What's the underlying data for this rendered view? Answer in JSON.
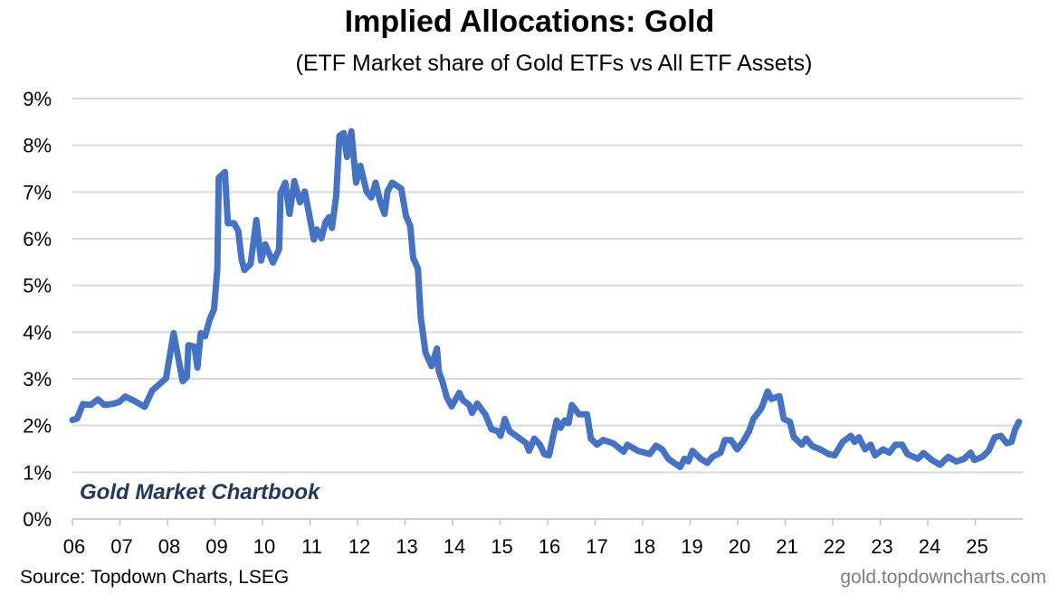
{
  "chart_data": {
    "type": "line",
    "title": "Implied Allocations: Gold",
    "subtitle": "(ETF Market share of Gold ETFs vs All ETF Assets)",
    "xlabel": "",
    "ylabel": "",
    "xlim": [
      2006,
      2026
    ],
    "ylim": [
      0,
      9
    ],
    "grid": true,
    "y_tick_labels": [
      "0%",
      "1%",
      "2%",
      "3%",
      "4%",
      "5%",
      "6%",
      "7%",
      "8%",
      "9%"
    ],
    "x_tick_labels": [
      "06",
      "07",
      "08",
      "09",
      "10",
      "11",
      "12",
      "13",
      "14",
      "15",
      "16",
      "17",
      "18",
      "19",
      "20",
      "21",
      "22",
      "23",
      "24",
      "25"
    ],
    "line_color": "#4472C4",
    "series": [
      {
        "x": [
          2006.0,
          2006.1,
          2006.22,
          2006.38,
          2006.54,
          2006.67,
          2006.83,
          2006.98,
          2007.11,
          2007.3,
          2007.52,
          2007.68,
          2007.97,
          2008.13,
          2008.32,
          2008.41,
          2008.44,
          2008.57,
          2008.63,
          2008.7,
          2008.79,
          2008.89,
          2008.98,
          2009.05,
          2009.08,
          2009.21,
          2009.27,
          2009.4,
          2009.49,
          2009.56,
          2009.62,
          2009.75,
          2009.87,
          2009.97,
          2010.06,
          2010.22,
          2010.35,
          2010.38,
          2010.48,
          2010.57,
          2010.67,
          2010.79,
          2010.89,
          2010.98,
          2011.08,
          2011.14,
          2011.24,
          2011.33,
          2011.4,
          2011.46,
          2011.55,
          2011.62,
          2011.71,
          2011.78,
          2011.87,
          2011.97,
          2012.06,
          2012.19,
          2012.29,
          2012.38,
          2012.48,
          2012.57,
          2012.63,
          2012.73,
          2012.92,
          2013.02,
          2013.11,
          2013.17,
          2013.27,
          2013.33,
          2013.43,
          2013.56,
          2013.67,
          2013.71,
          2013.79,
          2013.88,
          2013.98,
          2014.14,
          2014.22,
          2014.35,
          2014.41,
          2014.52,
          2014.69,
          2014.82,
          2014.95,
          2015.01,
          2015.1,
          2015.2,
          2015.42,
          2015.55,
          2015.61,
          2015.72,
          2015.84,
          2015.93,
          2016.03,
          2016.1,
          2016.19,
          2016.27,
          2016.36,
          2016.44,
          2016.51,
          2016.66,
          2016.83,
          2016.91,
          2017.04,
          2017.17,
          2017.38,
          2017.6,
          2017.68,
          2017.9,
          2018.15,
          2018.28,
          2018.41,
          2018.54,
          2018.66,
          2018.79,
          2018.88,
          2018.96,
          2019.05,
          2019.22,
          2019.36,
          2019.47,
          2019.64,
          2019.73,
          2019.86,
          2019.99,
          2020.11,
          2020.24,
          2020.33,
          2020.5,
          2020.63,
          2020.71,
          2020.88,
          2020.97,
          2021.1,
          2021.18,
          2021.35,
          2021.44,
          2021.57,
          2021.74,
          2021.91,
          2022.04,
          2022.21,
          2022.38,
          2022.46,
          2022.55,
          2022.68,
          2022.8,
          2022.89,
          2023.06,
          2023.19,
          2023.32,
          2023.46,
          2023.57,
          2023.79,
          2023.91,
          2024.09,
          2024.26,
          2024.43,
          2024.6,
          2024.77,
          2024.9,
          2024.98,
          2025.15,
          2025.28,
          2025.41,
          2025.54,
          2025.66,
          2025.76,
          2025.84,
          2025.92
        ],
        "y": [
          2.12,
          2.15,
          2.46,
          2.44,
          2.56,
          2.44,
          2.46,
          2.5,
          2.62,
          2.53,
          2.4,
          2.75,
          3.01,
          3.98,
          2.95,
          3.04,
          3.72,
          3.69,
          3.24,
          3.98,
          3.91,
          4.27,
          4.49,
          5.36,
          7.3,
          7.43,
          6.33,
          6.33,
          6.17,
          5.56,
          5.33,
          5.46,
          6.4,
          5.53,
          5.88,
          5.49,
          5.78,
          6.98,
          7.2,
          6.53,
          7.23,
          6.78,
          7.01,
          6.53,
          5.98,
          6.2,
          6.01,
          6.36,
          6.46,
          6.23,
          6.91,
          8.2,
          8.26,
          7.75,
          8.3,
          7.2,
          7.56,
          7.01,
          6.88,
          7.2,
          6.78,
          6.53,
          7.01,
          7.2,
          7.07,
          6.49,
          6.27,
          5.59,
          5.36,
          4.33,
          3.56,
          3.27,
          3.65,
          3.16,
          2.93,
          2.6,
          2.41,
          2.7,
          2.54,
          2.44,
          2.27,
          2.47,
          2.24,
          1.92,
          1.88,
          1.78,
          2.14,
          1.88,
          1.72,
          1.62,
          1.46,
          1.72,
          1.59,
          1.39,
          1.36,
          1.69,
          2.11,
          1.95,
          2.11,
          2.05,
          2.44,
          2.24,
          2.24,
          1.72,
          1.59,
          1.69,
          1.62,
          1.44,
          1.59,
          1.46,
          1.39,
          1.57,
          1.49,
          1.29,
          1.2,
          1.11,
          1.29,
          1.23,
          1.46,
          1.29,
          1.2,
          1.33,
          1.42,
          1.69,
          1.69,
          1.49,
          1.65,
          1.88,
          2.14,
          2.37,
          2.73,
          2.57,
          2.63,
          2.14,
          2.08,
          1.75,
          1.59,
          1.72,
          1.56,
          1.49,
          1.39,
          1.36,
          1.65,
          1.78,
          1.65,
          1.75,
          1.49,
          1.59,
          1.36,
          1.49,
          1.42,
          1.59,
          1.59,
          1.39,
          1.29,
          1.41,
          1.26,
          1.16,
          1.33,
          1.23,
          1.29,
          1.42,
          1.26,
          1.33,
          1.46,
          1.75,
          1.78,
          1.62,
          1.65,
          1.92,
          2.08
        ]
      }
    ],
    "annotation": "Gold Market Chartbook",
    "source": "Source: Topdown Charts, LSEG",
    "watermark": "gold.topdowncharts.com"
  }
}
